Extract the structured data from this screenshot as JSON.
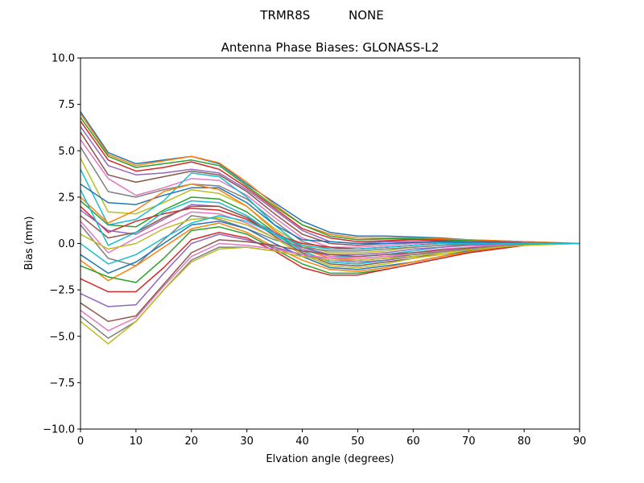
{
  "chart_data": {
    "type": "line",
    "suptitle": "TRMR8S          NONE",
    "title": "Antenna Phase Biases: GLONASS-L2",
    "xlabel": "Elvation angle (degrees)",
    "ylabel": "Bias (mm)",
    "xlim": [
      0,
      90
    ],
    "ylim": [
      -10,
      10
    ],
    "xticks": [
      0,
      10,
      20,
      30,
      40,
      50,
      60,
      70,
      80,
      90
    ],
    "yticks": [
      -10.0,
      -7.5,
      -5.0,
      -2.5,
      0.0,
      2.5,
      5.0,
      7.5,
      10.0
    ],
    "ytick_labels": [
      "−10.0",
      "−7.5",
      "−5.0",
      "−2.5",
      "0.0",
      "2.5",
      "5.0",
      "7.5",
      "10.0"
    ],
    "grid": false,
    "colors": [
      "#1f77b4",
      "#ff7f0e",
      "#2ca02c",
      "#d62728",
      "#9467bd",
      "#8c564b",
      "#e377c2",
      "#7f7f7f",
      "#bcbd22",
      "#17becf"
    ],
    "x": [
      0,
      5,
      10,
      15,
      20,
      25,
      30,
      35,
      40,
      45,
      50,
      55,
      60,
      65,
      70,
      75,
      80,
      85,
      90
    ],
    "series": [
      {
        "values": [
          7.1,
          4.9,
          4.3,
          4.5,
          4.7,
          4.3,
          3.2,
          2.2,
          1.2,
          0.6,
          0.4,
          0.4,
          0.35,
          0.3,
          0.2,
          0.15,
          0.1,
          0.05,
          0
        ]
      },
      {
        "values": [
          7.0,
          4.8,
          4.2,
          4.45,
          4.7,
          4.35,
          3.3,
          2.1,
          1.0,
          0.5,
          0.3,
          0.3,
          0.3,
          0.25,
          0.2,
          0.15,
          0.1,
          0.05,
          0
        ]
      },
      {
        "values": [
          6.8,
          4.7,
          4.1,
          4.3,
          4.5,
          4.2,
          3.1,
          2.0,
          1.0,
          0.4,
          0.2,
          0.25,
          0.25,
          0.2,
          0.15,
          0.1,
          0.05,
          0.02,
          0
        ]
      },
      {
        "values": [
          6.6,
          4.5,
          3.9,
          4.1,
          4.4,
          4.0,
          3.0,
          1.9,
          0.8,
          0.3,
          0.1,
          0.15,
          0.2,
          0.15,
          0.1,
          0.1,
          0.05,
          0.02,
          0
        ]
      },
      {
        "values": [
          6.3,
          4.2,
          3.7,
          3.8,
          4.0,
          3.8,
          2.9,
          1.8,
          0.7,
          0.1,
          0.0,
          0.1,
          0.1,
          0.1,
          0.1,
          0.05,
          0.05,
          0.02,
          0
        ]
      },
      {
        "values": [
          6.0,
          3.7,
          3.3,
          3.6,
          3.9,
          3.7,
          2.8,
          1.6,
          0.5,
          0.0,
          -0.1,
          0.0,
          0.05,
          0.1,
          0.05,
          0.05,
          0.02,
          0.01,
          0
        ]
      },
      {
        "values": [
          5.6,
          3.5,
          2.6,
          3.0,
          3.5,
          3.4,
          2.6,
          1.4,
          0.3,
          -0.2,
          -0.2,
          -0.1,
          0.0,
          0.05,
          0.05,
          0.02,
          0.02,
          0.01,
          0
        ]
      },
      {
        "values": [
          5.2,
          2.8,
          2.5,
          2.9,
          3.2,
          3.1,
          2.4,
          1.2,
          0.1,
          -0.3,
          -0.3,
          -0.2,
          -0.1,
          0.0,
          0.0,
          0.0,
          0.0,
          0,
          0
        ]
      },
      {
        "values": [
          4.6,
          1.7,
          1.6,
          2.2,
          2.9,
          2.7,
          2.0,
          0.8,
          -0.1,
          -0.5,
          -0.5,
          -0.4,
          -0.2,
          -0.1,
          -0.05,
          0,
          0,
          0,
          0
        ]
      },
      {
        "values": [
          4.0,
          1.0,
          1.3,
          2.3,
          3.8,
          3.6,
          2.5,
          1.0,
          -0.2,
          -0.7,
          -0.7,
          -0.6,
          -0.4,
          -0.2,
          -0.1,
          -0.05,
          0,
          0,
          0
        ]
      },
      {
        "values": [
          3.2,
          2.2,
          2.1,
          2.6,
          3.0,
          3.0,
          2.2,
          1.0,
          0.2,
          0.1,
          0.0,
          0.0,
          0.05,
          0.1,
          0.05,
          0.05,
          0.02,
          0,
          0
        ]
      },
      {
        "values": [
          2.5,
          1.1,
          1.8,
          2.8,
          3.2,
          2.9,
          2.0,
          0.7,
          -0.3,
          -0.8,
          -0.9,
          -0.8,
          -0.6,
          -0.4,
          -0.2,
          -0.1,
          -0.05,
          0,
          0
        ]
      },
      {
        "values": [
          2.3,
          1.0,
          0.9,
          1.8,
          2.5,
          2.4,
          1.7,
          0.6,
          -0.4,
          -1.0,
          -1.1,
          -0.9,
          -0.7,
          -0.5,
          -0.3,
          -0.15,
          -0.05,
          0,
          0
        ]
      },
      {
        "values": [
          2.0,
          0.6,
          1.2,
          1.6,
          1.9,
          1.8,
          1.3,
          0.5,
          0.0,
          -0.2,
          -0.3,
          -0.2,
          -0.1,
          0.0,
          0.0,
          0,
          0,
          0,
          0
        ]
      },
      {
        "values": [
          1.8,
          0.7,
          0.5,
          1.3,
          2.1,
          2.0,
          1.4,
          0.6,
          -0.2,
          -0.6,
          -0.6,
          -0.5,
          -0.3,
          -0.2,
          -0.1,
          -0.05,
          0,
          0,
          0
        ]
      },
      {
        "values": [
          1.5,
          0.3,
          0.6,
          1.4,
          2.0,
          2.0,
          1.4,
          0.4,
          -0.5,
          -1.1,
          -1.2,
          -1.0,
          -0.8,
          -0.5,
          -0.3,
          -0.15,
          -0.05,
          0,
          0
        ]
      },
      {
        "values": [
          1.2,
          -0.5,
          0.3,
          1.0,
          1.7,
          1.6,
          1.1,
          0.3,
          -0.3,
          -0.7,
          -0.8,
          -0.7,
          -0.5,
          -0.3,
          -0.2,
          -0.1,
          0,
          0,
          0
        ]
      },
      {
        "values": [
          1.0,
          -0.8,
          -1.2,
          0.2,
          1.5,
          1.3,
          0.8,
          0.2,
          -0.2,
          -0.4,
          -0.4,
          -0.3,
          -0.2,
          -0.1,
          -0.05,
          0,
          0,
          0,
          0
        ]
      },
      {
        "values": [
          0.5,
          -0.3,
          0.0,
          0.8,
          1.3,
          1.4,
          1.0,
          0.3,
          -0.6,
          -1.2,
          -1.3,
          -1.1,
          -0.8,
          -0.6,
          -0.4,
          -0.2,
          -0.1,
          0,
          0
        ]
      },
      {
        "values": [
          0.0,
          -1.1,
          -0.6,
          0.3,
          1.1,
          1.5,
          1.2,
          0.5,
          -0.4,
          -1.0,
          -1.1,
          -0.9,
          -0.7,
          -0.5,
          -0.3,
          -0.15,
          -0.05,
          0,
          0
        ]
      },
      {
        "values": [
          -0.6,
          -1.6,
          -1.0,
          0.0,
          1.0,
          1.2,
          0.8,
          0.0,
          -0.7,
          -1.3,
          -1.4,
          -1.2,
          -1.0,
          -0.7,
          -0.4,
          -0.2,
          -0.1,
          0,
          0
        ]
      },
      {
        "values": [
          -0.9,
          -2.0,
          -1.2,
          -0.2,
          0.8,
          1.1,
          0.6,
          -0.2,
          -0.9,
          -1.4,
          -1.5,
          -1.3,
          -1.0,
          -0.7,
          -0.45,
          -0.25,
          -0.1,
          0,
          0
        ]
      },
      {
        "values": [
          -1.2,
          -1.8,
          -2.1,
          -0.8,
          0.7,
          0.9,
          0.5,
          -0.3,
          -1.1,
          -1.6,
          -1.6,
          -1.4,
          -1.1,
          -0.8,
          -0.5,
          -0.3,
          -0.1,
          0,
          0
        ]
      },
      {
        "values": [
          -1.9,
          -2.6,
          -2.6,
          -1.3,
          0.2,
          0.6,
          0.3,
          -0.4,
          -1.3,
          -1.7,
          -1.7,
          -1.4,
          -1.1,
          -0.8,
          -0.5,
          -0.3,
          -0.1,
          0,
          0
        ]
      },
      {
        "values": [
          -2.7,
          -3.4,
          -3.3,
          -1.6,
          0.0,
          0.5,
          0.2,
          -0.2,
          -0.6,
          -0.9,
          -1.0,
          -0.9,
          -0.7,
          -0.5,
          -0.3,
          -0.2,
          -0.05,
          0,
          0
        ]
      },
      {
        "values": [
          -3.2,
          -4.2,
          -3.9,
          -2.2,
          -0.5,
          0.2,
          0.1,
          -0.1,
          -0.4,
          -0.6,
          -0.7,
          -0.6,
          -0.5,
          -0.35,
          -0.25,
          -0.15,
          -0.05,
          0,
          0
        ]
      },
      {
        "values": [
          -3.6,
          -4.7,
          -4.0,
          -2.3,
          -0.7,
          0.0,
          -0.1,
          -0.3,
          -0.6,
          -0.8,
          -0.8,
          -0.7,
          -0.6,
          -0.4,
          -0.3,
          -0.15,
          -0.05,
          0,
          0
        ]
      },
      {
        "values": [
          -3.9,
          -5.1,
          -4.2,
          -2.5,
          -0.9,
          -0.2,
          -0.2,
          -0.4,
          -0.7,
          -0.9,
          -0.9,
          -0.8,
          -0.6,
          -0.45,
          -0.3,
          -0.15,
          -0.05,
          0,
          0
        ]
      },
      {
        "values": [
          -4.2,
          -5.4,
          -4.2,
          -2.5,
          -1.0,
          -0.3,
          -0.2,
          -0.4,
          -0.7,
          -0.9,
          -0.9,
          -0.8,
          -0.7,
          -0.5,
          -0.35,
          -0.2,
          -0.1,
          -0.05,
          0
        ]
      },
      {
        "values": [
          2.9,
          -0.1,
          0.6,
          1.7,
          2.3,
          2.2,
          1.5,
          0.5,
          -0.1,
          -0.3,
          -0.3,
          -0.2,
          -0.1,
          0,
          0,
          0,
          0,
          0,
          0
        ]
      }
    ]
  }
}
